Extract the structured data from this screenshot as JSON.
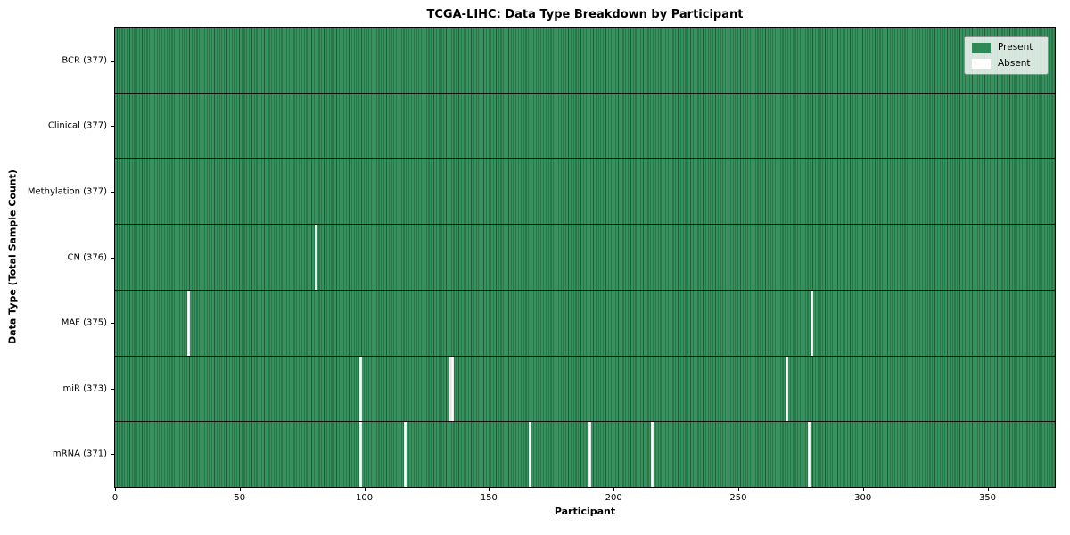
{
  "title": "TCGA-LIHC: Data Type Breakdown by Participant",
  "x_axis": {
    "label": "Participant"
  },
  "y_axis": {
    "label": "Data Type (Total Sample Count)"
  },
  "legend": {
    "position": "upper right",
    "entries": [
      {
        "label": "Present",
        "color": "#2e8b57"
      },
      {
        "label": "Absent",
        "color": "#ffffff"
      }
    ]
  },
  "colors": {
    "present": "#2e8b57",
    "present_light": "#37925f",
    "cell_border": "#1e5c3a",
    "absent": "#ffffff",
    "row_separator": "#101010",
    "legend_border": "#909090",
    "legend_bg": "rgba(255,255,255,0.8)"
  },
  "chart_data": {
    "type": "heatmap",
    "title": "TCGA-LIHC: Data Type Breakdown by Participant",
    "xlabel": "Participant",
    "ylabel": "Data Type (Total Sample Count)",
    "x_range": [
      0,
      377
    ],
    "n_participants": 377,
    "x_ticks": [
      0,
      50,
      100,
      150,
      200,
      250,
      300,
      350
    ],
    "grid": "cell-borders",
    "legend_entries": [
      "Present",
      "Absent"
    ],
    "legend_position": "upper right",
    "value_encoding": {
      "present": 1,
      "absent": 0
    },
    "rows": [
      {
        "name": "bcr",
        "label": "BCR (377)",
        "total_present": 377,
        "absent_participants": []
      },
      {
        "name": "clinical",
        "label": "Clinical (377)",
        "total_present": 377,
        "absent_participants": []
      },
      {
        "name": "methylation",
        "label": "Methylation (377)",
        "total_present": 377,
        "absent_participants": []
      },
      {
        "name": "cn",
        "label": "CN (376)",
        "total_present": 376,
        "absent_participants": [
          80
        ]
      },
      {
        "name": "maf",
        "label": "MAF (375)",
        "total_present": 375,
        "absent_participants": [
          29,
          279
        ]
      },
      {
        "name": "mir",
        "label": "miR (373)",
        "total_present": 373,
        "absent_participants": [
          98,
          134,
          135,
          269
        ]
      },
      {
        "name": "mrna",
        "label": "mRNA (371)",
        "total_present": 371,
        "absent_participants": [
          98,
          116,
          166,
          190,
          215,
          278
        ]
      }
    ]
  }
}
